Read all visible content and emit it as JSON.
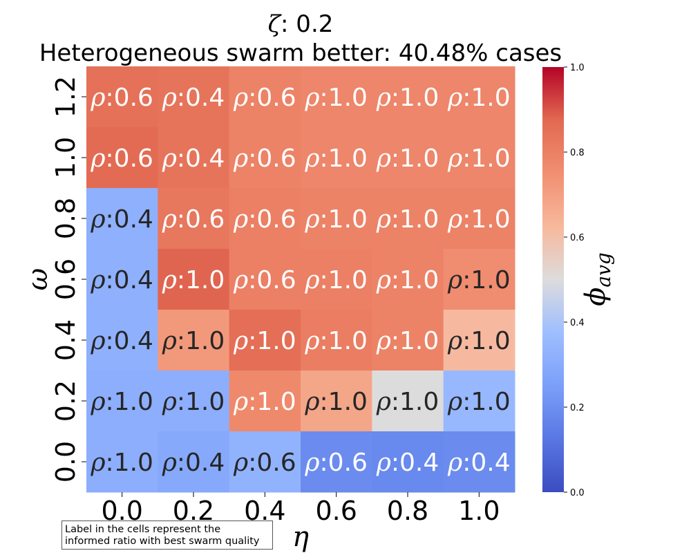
{
  "chart_data": {
    "type": "heatmap",
    "title_line1": "ζ: 0.2",
    "title_line2": "Heterogeneous swarm better: 40.48% cases",
    "xlabel": "η",
    "ylabel": "ω",
    "x_categories": [
      "0.0",
      "0.2",
      "0.4",
      "0.6",
      "0.8",
      "1.0"
    ],
    "y_categories": [
      "1.2",
      "1.0",
      "0.8",
      "0.6",
      "0.4",
      "0.2",
      "0.0"
    ],
    "values": [
      [
        0.85,
        0.84,
        0.79,
        0.78,
        0.78,
        0.78
      ],
      [
        0.87,
        0.84,
        0.79,
        0.78,
        0.78,
        0.78
      ],
      [
        0.32,
        0.83,
        0.8,
        0.79,
        0.79,
        0.79
      ],
      [
        0.32,
        0.88,
        0.8,
        0.8,
        0.79,
        0.76
      ],
      [
        0.32,
        0.72,
        0.86,
        0.81,
        0.79,
        0.62
      ],
      [
        0.31,
        0.31,
        0.77,
        0.68,
        0.5,
        0.35
      ],
      [
        0.31,
        0.29,
        0.33,
        0.19,
        0.18,
        0.19
      ]
    ],
    "cell_labels": [
      [
        "0.6",
        "0.4",
        "0.6",
        "1.0",
        "1.0",
        "1.0"
      ],
      [
        "0.6",
        "0.4",
        "0.6",
        "1.0",
        "1.0",
        "1.0"
      ],
      [
        "0.4",
        "0.6",
        "0.6",
        "1.0",
        "1.0",
        "1.0"
      ],
      [
        "0.4",
        "1.0",
        "0.6",
        "1.0",
        "1.0",
        "1.0"
      ],
      [
        "0.4",
        "1.0",
        "1.0",
        "1.0",
        "1.0",
        "1.0"
      ],
      [
        "1.0",
        "1.0",
        "1.0",
        "1.0",
        "1.0",
        "1.0"
      ],
      [
        "1.0",
        "0.4",
        "0.6",
        "0.6",
        "0.4",
        "0.4"
      ]
    ],
    "cell_label_prefix": "ρ",
    "colormap": "coolwarm",
    "colorbar": {
      "label": "ϕ",
      "label_subscript": "avg",
      "range": [
        0.0,
        1.0
      ],
      "ticks": [
        "0.0",
        "0.2",
        "0.4",
        "0.6",
        "0.8",
        "1.0"
      ]
    },
    "note": {
      "line1": "Label in the cells represent the",
      "line2": "informed ratio with best swarm quality"
    },
    "grid": false
  }
}
